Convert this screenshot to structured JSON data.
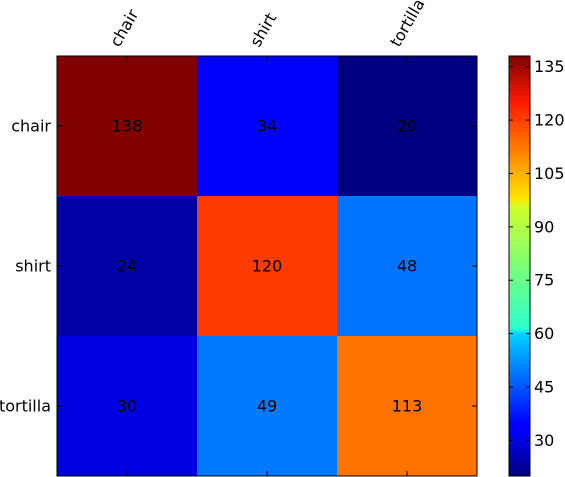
{
  "chart_data": {
    "type": "heatmap",
    "x_categories": [
      "chair",
      "shirt",
      "tortilla"
    ],
    "y_categories": [
      "chair",
      "shirt",
      "tortilla"
    ],
    "values": [
      [
        138,
        34,
        20
      ],
      [
        24,
        120,
        48
      ],
      [
        30,
        49,
        113
      ]
    ],
    "colormap": "jet",
    "vmin": 20,
    "vmax": 138,
    "colorbar_ticks": [
      30,
      45,
      60,
      75,
      90,
      105,
      120,
      135
    ],
    "x_tick_rotation_deg": 60,
    "x_tick_position": "top",
    "grid": false
  }
}
